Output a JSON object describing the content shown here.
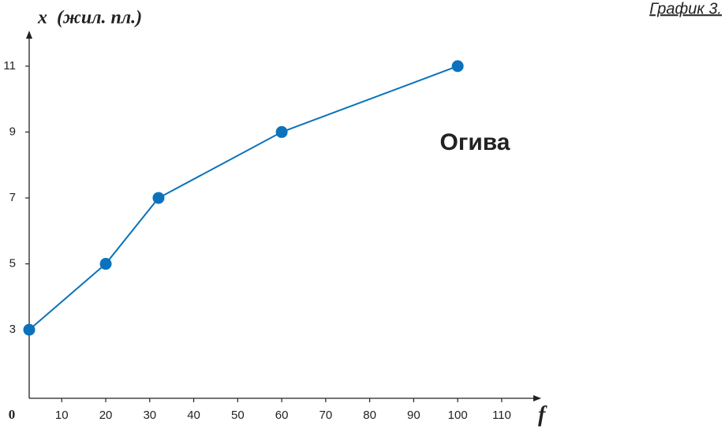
{
  "chart_data": {
    "type": "line",
    "title": "График 3.",
    "y_label": "x  (жил. пл.)",
    "x_label": "f",
    "origin_label": "0",
    "annotation": "Огива",
    "x": [
      2.6,
      20,
      32,
      60,
      100
    ],
    "series": [
      {
        "color": "#0b72bb",
        "values": [
          3,
          5,
          7,
          9,
          11
        ]
      }
    ],
    "xlim": [
      2.6,
      118.8
    ],
    "xticks": [
      10,
      20,
      30,
      40,
      50,
      60,
      70,
      80,
      90,
      100,
      110
    ],
    "ylim": [
      0.92,
      12.05
    ],
    "yticks": [
      3,
      5,
      7,
      9,
      11
    ],
    "grid": false
  }
}
